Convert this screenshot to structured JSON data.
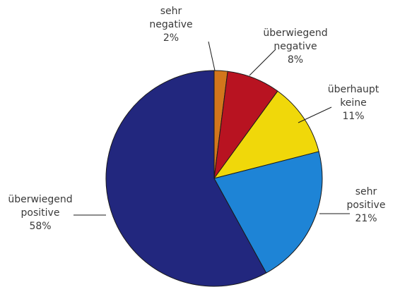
{
  "chart_data": {
    "type": "pie",
    "title": "",
    "slices": [
      {
        "key": "sehr_negative",
        "lines": [
          "sehr",
          "negative"
        ],
        "pct_label": "2%",
        "value": 2,
        "color": "#D2761C"
      },
      {
        "key": "ueberwiegend_negative",
        "lines": [
          "überwiegend",
          "negative"
        ],
        "pct_label": "8%",
        "value": 8,
        "color": "#B81321"
      },
      {
        "key": "ueberhaupt_keine",
        "lines": [
          "überhaupt",
          "keine"
        ],
        "pct_label": "11%",
        "value": 11,
        "color": "#F0D80A"
      },
      {
        "key": "sehr_positive",
        "lines": [
          "sehr",
          "positive"
        ],
        "pct_label": "21%",
        "value": 21,
        "color": "#1E84D6"
      },
      {
        "key": "ueberwiegend_positive",
        "lines": [
          "überwiegend",
          "positive"
        ],
        "pct_label": "58%",
        "value": 58,
        "color": "#22277E"
      }
    ]
  }
}
